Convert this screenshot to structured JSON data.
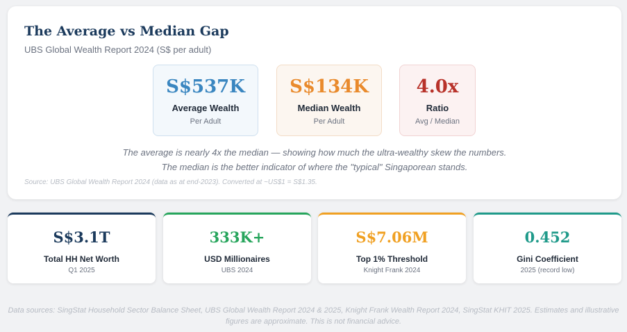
{
  "header": {
    "title": "The Average vs Median Gap",
    "subtitle": "UBS Global Wealth Report 2024 (S$ per adult)"
  },
  "comparison": [
    {
      "value": "S$537K",
      "label": "Average Wealth",
      "sub": "Per Adult",
      "color": "#3a86c0"
    },
    {
      "value": "S$134K",
      "label": "Median Wealth",
      "sub": "Per Adult",
      "color": "#e98a2c"
    },
    {
      "value": "4.0x",
      "label": "Ratio",
      "sub": "Avg / Median",
      "color": "#b8322a"
    }
  ],
  "notes": [
    "The average is nearly 4x the median — showing how much the ultra-wealthy skew the numbers.",
    "The median is the better indicator of where the \"typical\" Singaporean stands."
  ],
  "source": "Source: UBS Global Wealth Report 2024 (data as at end-2023). Converted at ~US$1 = S$1.35.",
  "kpis": [
    {
      "value": "S$3.1T",
      "label": "Total HH Net Worth",
      "sub": "Q1 2025",
      "color": "#1b3a5c",
      "accent": "#1b3a5c"
    },
    {
      "value": "333K+",
      "label": "USD Millionaires",
      "sub": "UBS 2024",
      "color": "#27a55c",
      "accent": "#27a55c"
    },
    {
      "value": "S$7.06M",
      "label": "Top 1% Threshold",
      "sub": "Knight Frank 2024",
      "color": "#f0a022",
      "accent": "#f0a022"
    },
    {
      "value": "0.452",
      "label": "Gini Coefficient",
      "sub": "2025 (record low)",
      "color": "#1f9a8a",
      "accent": "#1f9a8a"
    }
  ],
  "footer": [
    "Data sources: SingStat Household Sector Balance Sheet, UBS Global Wealth Report 2024 & 2025, Knight Frank Wealth Report 2024, SingStat KHIT 2025. Estimates and illustrative",
    "figures are approximate. This is not financial advice."
  ]
}
